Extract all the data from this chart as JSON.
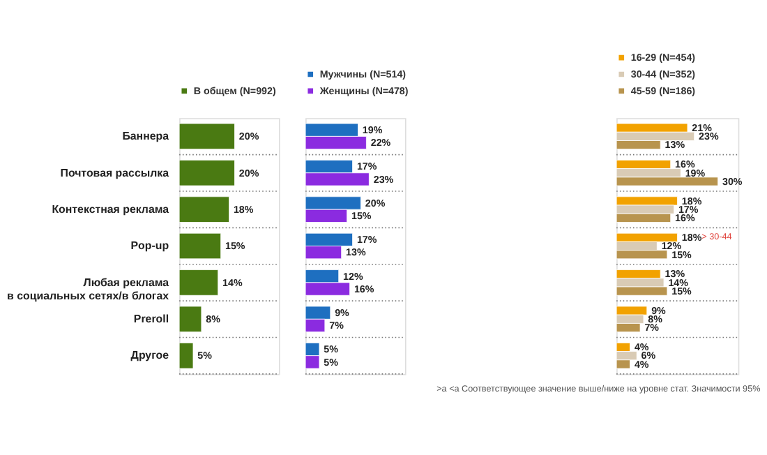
{
  "chart_data": [
    {
      "type": "bar",
      "orientation": "horizontal",
      "categories": [
        "Баннера",
        "Почтовая рассылка",
        "Контекстная реклама",
        "Pop-up",
        "Любая реклама\nв социальных сетях/в блогах",
        "Preroll",
        "Другое"
      ],
      "series": [
        {
          "name": "В общем (N=992)",
          "color": "#4a7a12",
          "values": [
            20,
            20,
            18,
            15,
            14,
            8,
            5
          ],
          "value_labels": [
            "20%",
            "20%",
            "18%",
            "15%",
            "14%",
            "8%",
            "5%"
          ]
        }
      ],
      "legend": "top",
      "grid": "y",
      "tick_labels": "y"
    },
    {
      "type": "bar",
      "orientation": "horizontal",
      "categories": [
        "Баннера",
        "Почтовая рассылка",
        "Контекстная реклама",
        "Pop-up",
        "Любая реклама\nв социальных сетях/в блогах",
        "Preroll",
        "Другое"
      ],
      "series": [
        {
          "name": "Мужчины (N=514)",
          "color": "#1e6fc0",
          "values": [
            19,
            17,
            20,
            17,
            12,
            9,
            5
          ],
          "value_labels": [
            "19%",
            "17%",
            "20%",
            "17%",
            "12%",
            "9%",
            "5%"
          ]
        },
        {
          "name": "Женщины (N=478)",
          "color": "#8b2be0",
          "values": [
            22,
            23,
            15,
            13,
            16,
            7,
            5
          ],
          "value_labels": [
            "22%",
            "23%",
            "15%",
            "13%",
            "16%",
            "7%",
            "5%"
          ]
        }
      ],
      "legend": "top",
      "grid": "y",
      "tick_labels": false
    },
    {
      "type": "bar",
      "orientation": "horizontal",
      "categories": [
        "Баннера",
        "Почтовая рассылка",
        "Контекстная реклама",
        "Pop-up",
        "Любая реклама\nв социальных сетях/в блогах",
        "Preroll",
        "Другое"
      ],
      "series": [
        {
          "name": "16-29 (N=454)",
          "color": "#f2a200",
          "values": [
            21,
            16,
            18,
            18,
            13,
            9,
            4
          ],
          "value_labels": [
            "21%",
            "16%",
            "18%",
            "18%",
            "13%",
            "9%",
            "4%"
          ]
        },
        {
          "name": "30-44 (N=352)",
          "color": "#d9cbb5",
          "values": [
            23,
            19,
            17,
            12,
            14,
            8,
            6
          ],
          "value_labels": [
            "23%",
            "19%",
            "17%",
            "12%",
            "14%",
            "8%",
            "6%"
          ]
        },
        {
          "name": "45-59 (N=186)",
          "color": "#b8944e",
          "values": [
            13,
            30,
            16,
            15,
            15,
            7,
            4
          ],
          "value_labels": [
            "13%",
            "30%",
            "16%",
            "15%",
            "15%",
            "7%",
            "4%"
          ]
        }
      ],
      "annotations": [
        {
          "text": "> 30-44",
          "x": 18,
          "y": "Pop-up"
        },
        ">a <a Соответствующее значение выше/ниже на уровне стат. Значимости 95%"
      ],
      "legend": "top",
      "grid": "y",
      "tick_labels": false
    }
  ]
}
